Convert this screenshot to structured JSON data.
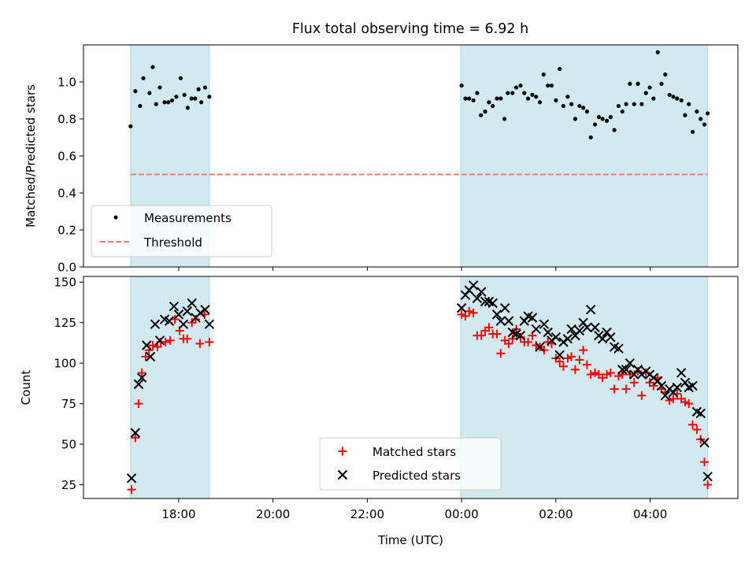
{
  "chart_data": [
    {
      "type": "scatter",
      "title": "Flux total observing time = 6.92 h",
      "ylabel": "Matched/Predicted stars",
      "ylim": [
        0,
        1.2
      ],
      "yticks": [
        "0.0",
        "0.2",
        "0.4",
        "0.6",
        "0.8",
        "1.0"
      ],
      "x_range_hours": [
        15.98,
        29.86
      ],
      "grid": false,
      "legend_position": "lower-left",
      "threshold": {
        "name": "Threshold",
        "value": 0.5,
        "color": "#f07b7b",
        "style": "dashed"
      },
      "observing_windows_hours": [
        [
          16.98,
          18.65
        ],
        [
          23.98,
          29.22
        ]
      ],
      "window_color": "#d2e9f0",
      "series": [
        {
          "name": "Measurements",
          "color": "#000000",
          "points": [
            [
              16.98,
              0.76
            ],
            [
              17.08,
              0.95
            ],
            [
              17.18,
              0.87
            ],
            [
              17.25,
              1.02
            ],
            [
              17.38,
              0.94
            ],
            [
              17.45,
              1.08
            ],
            [
              17.52,
              0.88
            ],
            [
              17.6,
              0.97
            ],
            [
              17.7,
              0.89
            ],
            [
              17.78,
              0.89
            ],
            [
              17.86,
              0.9
            ],
            [
              17.95,
              0.92
            ],
            [
              18.04,
              1.02
            ],
            [
              18.12,
              0.93
            ],
            [
              18.19,
              0.86
            ],
            [
              18.27,
              0.91
            ],
            [
              18.35,
              0.91
            ],
            [
              18.42,
              0.96
            ],
            [
              18.48,
              0.89
            ],
            [
              18.56,
              0.97
            ],
            [
              18.65,
              0.92
            ],
            [
              24.0,
              0.98
            ],
            [
              24.08,
              0.91
            ],
            [
              24.16,
              0.91
            ],
            [
              24.25,
              0.9
            ],
            [
              24.33,
              0.94
            ],
            [
              24.41,
              0.82
            ],
            [
              24.5,
              0.84
            ],
            [
              24.58,
              0.89
            ],
            [
              24.66,
              0.87
            ],
            [
              24.75,
              0.91
            ],
            [
              24.83,
              0.91
            ],
            [
              24.91,
              0.8
            ],
            [
              24.98,
              0.94
            ],
            [
              25.08,
              0.94
            ],
            [
              25.16,
              0.97
            ],
            [
              25.25,
              0.98
            ],
            [
              25.33,
              0.94
            ],
            [
              25.41,
              0.91
            ],
            [
              25.5,
              0.93
            ],
            [
              25.58,
              0.92
            ],
            [
              25.66,
              0.89
            ],
            [
              25.74,
              1.04
            ],
            [
              25.83,
              0.98
            ],
            [
              25.91,
              0.98
            ],
            [
              26.0,
              0.9
            ],
            [
              26.08,
              1.07
            ],
            [
              26.16,
              0.87
            ],
            [
              26.25,
              0.92
            ],
            [
              26.33,
              0.88
            ],
            [
              26.41,
              0.8
            ],
            [
              26.5,
              0.87
            ],
            [
              26.58,
              0.86
            ],
            [
              26.66,
              0.84
            ],
            [
              26.74,
              0.7
            ],
            [
              26.83,
              0.77
            ],
            [
              26.91,
              0.81
            ],
            [
              26.99,
              0.8
            ],
            [
              27.08,
              0.79
            ],
            [
              27.16,
              0.81
            ],
            [
              27.24,
              0.74
            ],
            [
              27.33,
              0.87
            ],
            [
              27.41,
              0.84
            ],
            [
              27.49,
              0.88
            ],
            [
              27.57,
              0.99
            ],
            [
              27.66,
              0.88
            ],
            [
              27.74,
              0.99
            ],
            [
              27.82,
              0.88
            ],
            [
              27.91,
              0.94
            ],
            [
              27.99,
              0.97
            ],
            [
              28.07,
              0.91
            ],
            [
              28.16,
              1.16
            ],
            [
              28.24,
              0.99
            ],
            [
              28.32,
              1.04
            ],
            [
              28.41,
              0.93
            ],
            [
              28.49,
              0.92
            ],
            [
              28.57,
              0.91
            ],
            [
              28.66,
              0.9
            ],
            [
              28.74,
              0.82
            ],
            [
              28.82,
              0.88
            ],
            [
              28.9,
              0.73
            ],
            [
              28.99,
              0.84
            ],
            [
              29.07,
              0.8
            ],
            [
              29.15,
              0.77
            ],
            [
              29.22,
              0.83
            ]
          ]
        }
      ]
    },
    {
      "type": "scatter",
      "xlabel": "Time (UTC)",
      "ylabel": "Count",
      "ylim": [
        16.5,
        153.5
      ],
      "yticks": [
        "25",
        "50",
        "75",
        "100",
        "125",
        "150"
      ],
      "x_range_hours": [
        15.98,
        29.86
      ],
      "xticks": [
        {
          "label": "18:00",
          "hour": 18
        },
        {
          "label": "20:00",
          "hour": 20
        },
        {
          "label": "22:00",
          "hour": 22
        },
        {
          "label": "00:00",
          "hour": 24
        },
        {
          "label": "02:00",
          "hour": 26
        },
        {
          "label": "04:00",
          "hour": 28
        }
      ],
      "grid": false,
      "legend_position": "lower-center",
      "observing_windows_hours": [
        [
          16.98,
          18.65
        ],
        [
          23.98,
          29.22
        ]
      ],
      "window_color": "#d2e9f0",
      "series": [
        {
          "name": "Matched stars",
          "color": "#ff0000",
          "marker": "plus",
          "points": [
            [
              17.0,
              22
            ],
            [
              17.08,
              54
            ],
            [
              17.15,
              75
            ],
            [
              17.22,
              94
            ],
            [
              17.3,
              104
            ],
            [
              17.37,
              108
            ],
            [
              17.45,
              111
            ],
            [
              17.55,
              110
            ],
            [
              17.62,
              113
            ],
            [
              17.72,
              113
            ],
            [
              17.82,
              114
            ],
            [
              17.92,
              127
            ],
            [
              18.02,
              120
            ],
            [
              18.1,
              115
            ],
            [
              18.18,
              115
            ],
            [
              18.28,
              125
            ],
            [
              18.36,
              127
            ],
            [
              18.45,
              112
            ],
            [
              18.55,
              130
            ],
            [
              18.65,
              113
            ],
            [
              24.0,
              130
            ],
            [
              24.08,
              129
            ],
            [
              24.16,
              132
            ],
            [
              24.25,
              131
            ],
            [
              24.33,
              117
            ],
            [
              24.42,
              117
            ],
            [
              24.5,
              120
            ],
            [
              24.58,
              122
            ],
            [
              24.66,
              118
            ],
            [
              24.75,
              118
            ],
            [
              24.83,
              106
            ],
            [
              24.92,
              114
            ],
            [
              25.0,
              112
            ],
            [
              25.08,
              115
            ],
            [
              25.16,
              121
            ],
            [
              25.25,
              116
            ],
            [
              25.33,
              113
            ],
            [
              25.41,
              113
            ],
            [
              25.5,
              117
            ],
            [
              25.58,
              111
            ],
            [
              25.66,
              110
            ],
            [
              25.75,
              108
            ],
            [
              25.83,
              113
            ],
            [
              25.91,
              112
            ],
            [
              26.0,
              103
            ],
            [
              26.08,
              101
            ],
            [
              26.16,
              98
            ],
            [
              26.25,
              103
            ],
            [
              26.33,
              104
            ],
            [
              26.41,
              96
            ],
            [
              26.5,
              102
            ],
            [
              26.58,
              108
            ],
            [
              26.66,
              99
            ],
            [
              26.74,
              93
            ],
            [
              26.83,
              94
            ],
            [
              26.91,
              93
            ],
            [
              26.99,
              91
            ],
            [
              27.08,
              93
            ],
            [
              27.16,
              94
            ],
            [
              27.24,
              84
            ],
            [
              27.33,
              92
            ],
            [
              27.41,
              93
            ],
            [
              27.49,
              84
            ],
            [
              27.57,
              93
            ],
            [
              27.66,
              88
            ],
            [
              27.74,
              95
            ],
            [
              27.82,
              80
            ],
            [
              27.91,
              94
            ],
            [
              27.99,
              88
            ],
            [
              28.07,
              86
            ],
            [
              28.16,
              91
            ],
            [
              28.24,
              84
            ],
            [
              28.32,
              82
            ],
            [
              28.41,
              77
            ],
            [
              28.49,
              78
            ],
            [
              28.57,
              81
            ],
            [
              28.66,
              78
            ],
            [
              28.74,
              76
            ],
            [
              28.82,
              75
            ],
            [
              28.9,
              62
            ],
            [
              28.99,
              59
            ],
            [
              29.07,
              53
            ],
            [
              29.15,
              39
            ],
            [
              29.22,
              25
            ]
          ]
        },
        {
          "name": "Predicted stars",
          "color": "#000000",
          "marker": "x",
          "points": [
            [
              17.0,
              29
            ],
            [
              17.08,
              57
            ],
            [
              17.15,
              87
            ],
            [
              17.22,
              91
            ],
            [
              17.32,
              111
            ],
            [
              17.4,
              104
            ],
            [
              17.5,
              124
            ],
            [
              17.6,
              114
            ],
            [
              17.7,
              127
            ],
            [
              17.8,
              126
            ],
            [
              17.9,
              135
            ],
            [
              18.0,
              130
            ],
            [
              18.1,
              124
            ],
            [
              18.18,
              132
            ],
            [
              18.28,
              137
            ],
            [
              18.36,
              128
            ],
            [
              18.46,
              131
            ],
            [
              18.56,
              133
            ],
            [
              18.65,
              124
            ],
            [
              24.0,
              134
            ],
            [
              24.08,
              142
            ],
            [
              24.16,
              145
            ],
            [
              24.25,
              148
            ],
            [
              24.33,
              140
            ],
            [
              24.42,
              144
            ],
            [
              24.5,
              138
            ],
            [
              24.58,
              138
            ],
            [
              24.66,
              137
            ],
            [
              24.75,
              130
            ],
            [
              24.83,
              126
            ],
            [
              24.92,
              134
            ],
            [
              25.0,
              126
            ],
            [
              25.08,
              119
            ],
            [
              25.16,
              118
            ],
            [
              25.25,
              117
            ],
            [
              25.33,
              126
            ],
            [
              25.41,
              129
            ],
            [
              25.5,
              128
            ],
            [
              25.58,
              121
            ],
            [
              25.66,
              110
            ],
            [
              25.75,
              124
            ],
            [
              25.83,
              119
            ],
            [
              25.91,
              114
            ],
            [
              26.0,
              116
            ],
            [
              26.08,
              105
            ],
            [
              26.16,
              113
            ],
            [
              26.25,
              115
            ],
            [
              26.33,
              121
            ],
            [
              26.41,
              117
            ],
            [
              26.5,
              120
            ],
            [
              26.58,
              125
            ],
            [
              26.66,
              122
            ],
            [
              26.74,
              133
            ],
            [
              26.83,
              122
            ],
            [
              26.91,
              117
            ],
            [
              26.99,
              115
            ],
            [
              27.08,
              119
            ],
            [
              27.16,
              116
            ],
            [
              27.24,
              110
            ],
            [
              27.33,
              109
            ],
            [
              27.41,
              96
            ],
            [
              27.49,
              96
            ],
            [
              27.57,
              100
            ],
            [
              27.66,
              93
            ],
            [
              27.74,
              96
            ],
            [
              27.82,
              93
            ],
            [
              27.91,
              95
            ],
            [
              27.99,
              93
            ],
            [
              28.07,
              91
            ],
            [
              28.16,
              89
            ],
            [
              28.24,
              86
            ],
            [
              28.32,
              80
            ],
            [
              28.41,
              84
            ],
            [
              28.49,
              82
            ],
            [
              28.57,
              85
            ],
            [
              28.66,
              94
            ],
            [
              28.74,
              88
            ],
            [
              28.82,
              85
            ],
            [
              28.9,
              86
            ],
            [
              28.99,
              70
            ],
            [
              29.07,
              69
            ],
            [
              29.15,
              51
            ],
            [
              29.22,
              30
            ]
          ]
        }
      ]
    }
  ]
}
